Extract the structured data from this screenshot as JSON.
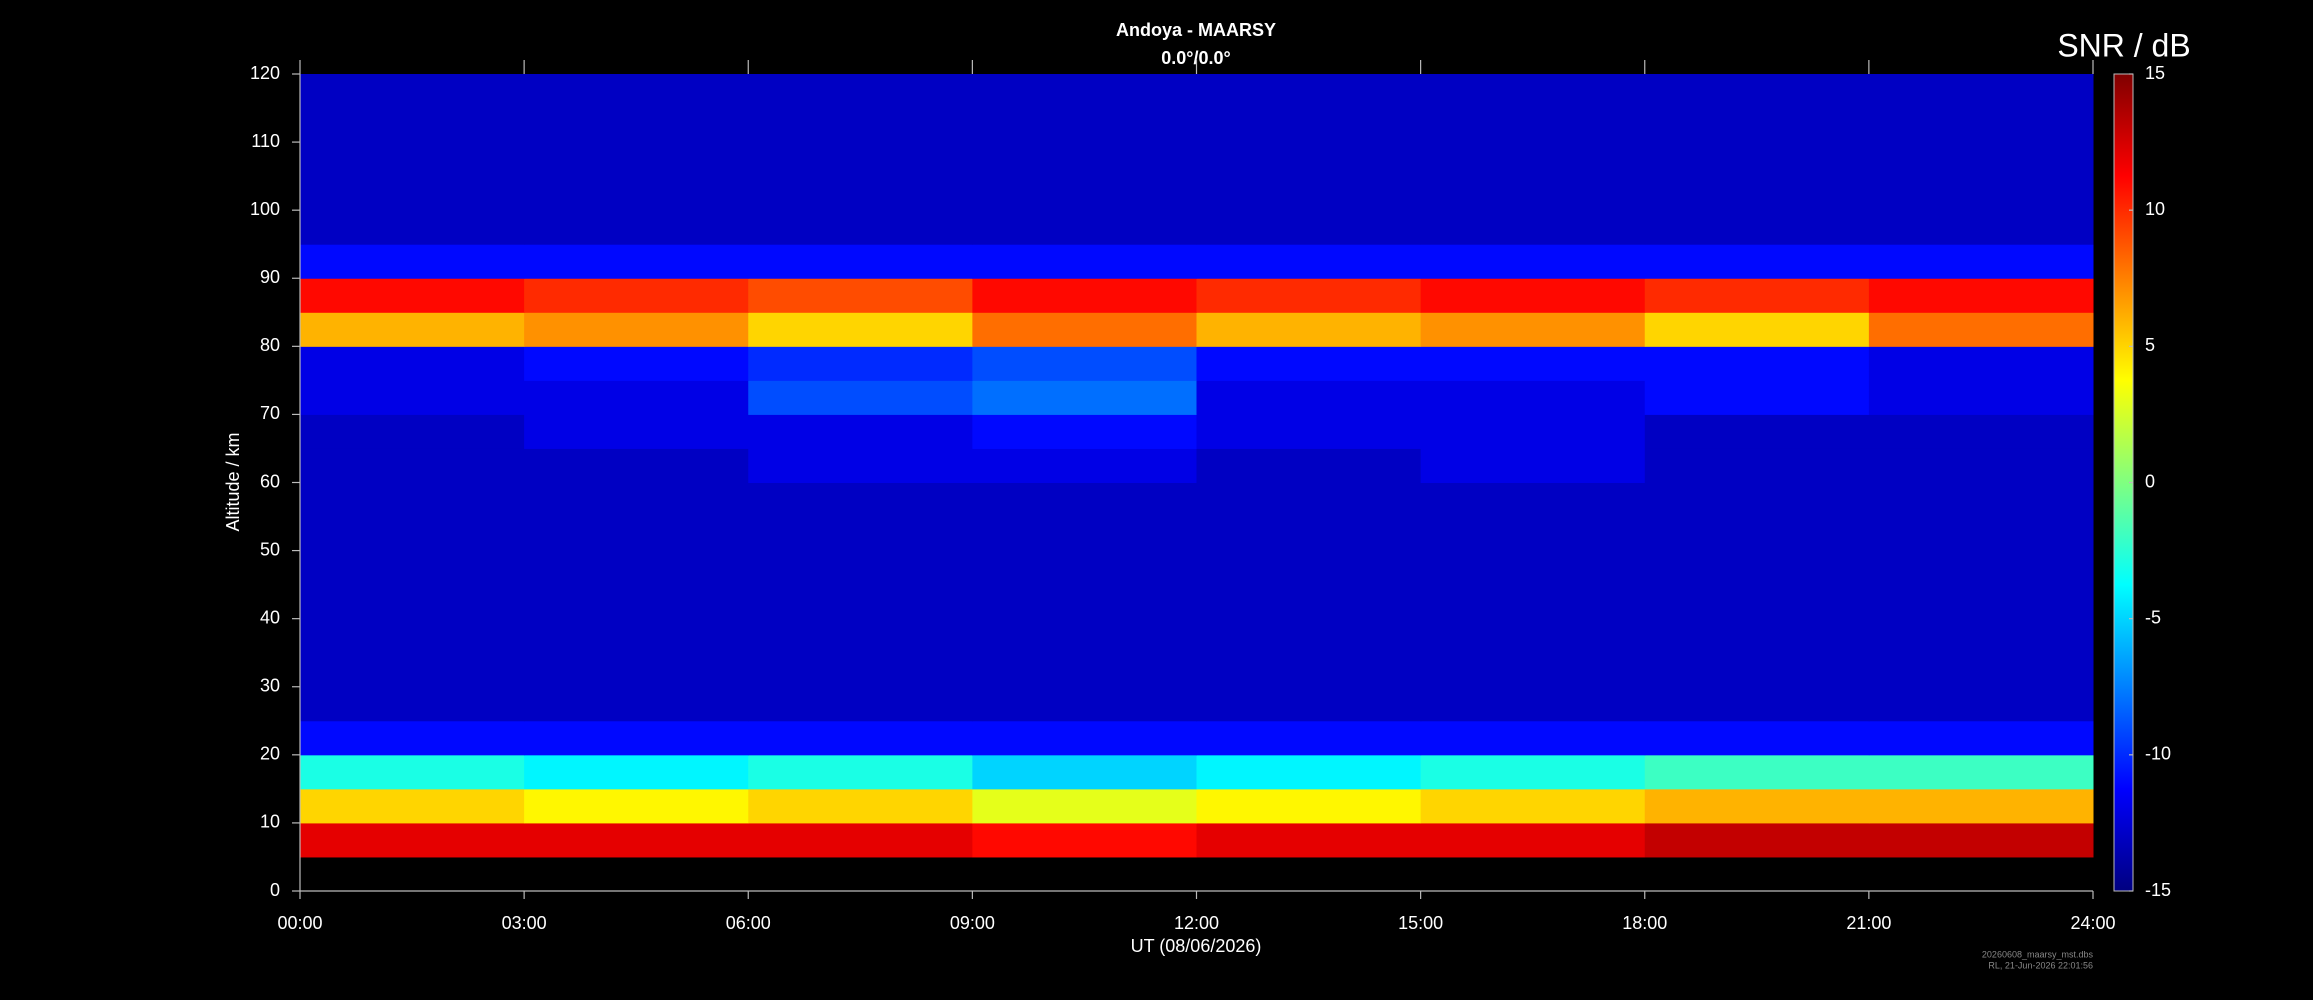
{
  "chart_data": {
    "type": "heatmap",
    "title": "Andoya - MAARSY",
    "subtitle": "0.0°/0.0°",
    "x_label": "UT (08/06/2026)",
    "y_label": "Altitude / km",
    "colorbar_label": "SNR / dB",
    "colorscale": "jet",
    "footnotes": [
      "20260608_maarsy_mst.dbs",
      "RL, 21-Jun-2026 22:01:56"
    ],
    "xlim": [
      0,
      24
    ],
    "xticks": [
      {
        "value": 0,
        "label": "00:00"
      },
      {
        "value": 3,
        "label": "03:00"
      },
      {
        "value": 6,
        "label": "06:00"
      },
      {
        "value": 9,
        "label": "09:00"
      },
      {
        "value": 12,
        "label": "12:00"
      },
      {
        "value": 15,
        "label": "15:00"
      },
      {
        "value": 18,
        "label": "18:00"
      },
      {
        "value": 21,
        "label": "21:00"
      },
      {
        "value": 24,
        "label": "24:00"
      }
    ],
    "ylim": [
      0,
      120
    ],
    "yticks": [
      0,
      10,
      20,
      30,
      40,
      50,
      60,
      70,
      80,
      90,
      100,
      110,
      120
    ],
    "zlim": [
      -15,
      15
    ],
    "zticks": [
      -15,
      -10,
      -5,
      0,
      5,
      10,
      15
    ],
    "x_bins": [
      0,
      3,
      6,
      9,
      12,
      15,
      18,
      21,
      24
    ],
    "y_bins": [
      5,
      10,
      15,
      20,
      25,
      30,
      35,
      40,
      45,
      50,
      55,
      60,
      65,
      70,
      75,
      80,
      85,
      90,
      95,
      100,
      105,
      110,
      115,
      120
    ],
    "z": [
      [
        12,
        12,
        12,
        11,
        12,
        12,
        13,
        13
      ],
      [
        5,
        4,
        5,
        3,
        4,
        5,
        6,
        6
      ],
      [
        -3,
        -4,
        -3,
        -5,
        -4,
        -3,
        -2,
        -2
      ],
      [
        -11,
        -11,
        -11,
        -11,
        -11,
        -11,
        -11,
        -11
      ],
      [
        -13,
        -13,
        -13,
        -13,
        -13,
        -13,
        -13,
        -13
      ],
      [
        -13,
        -13,
        -13,
        -13,
        -13,
        -13,
        -13,
        -13
      ],
      [
        -13,
        -13,
        -13,
        -13,
        -13,
        -13,
        -13,
        -13
      ],
      [
        -13,
        -13,
        -13,
        -13,
        -13,
        -13,
        -13,
        -13
      ],
      [
        -13,
        -13,
        -13,
        -13,
        -13,
        -13,
        -13,
        -13
      ],
      [
        -13,
        -13,
        -13,
        -13,
        -13,
        -13,
        -13,
        -13
      ],
      [
        -13,
        -13,
        -13,
        -13,
        -13,
        -13,
        -13,
        -13
      ],
      [
        -13,
        -13,
        -12,
        -12,
        -13,
        -12,
        -13,
        -13
      ],
      [
        -13,
        -12,
        -12,
        -11,
        -12,
        -12,
        -13,
        -13
      ],
      [
        -12,
        -12,
        -9,
        -8,
        -12,
        -12,
        -11,
        -12
      ],
      [
        -12,
        -11,
        -10,
        -9,
        -11,
        -11,
        -11,
        -12
      ],
      [
        6,
        7,
        5,
        8,
        6,
        7,
        5,
        8
      ],
      [
        11,
        10,
        9,
        11,
        10,
        11,
        10,
        11
      ],
      [
        -11,
        -11,
        -11,
        -11,
        -11,
        -11,
        -11,
        -11
      ],
      [
        -13,
        -13,
        -13,
        -13,
        -13,
        -13,
        -13,
        -13
      ],
      [
        -13,
        -13,
        -13,
        -13,
        -13,
        -13,
        -13,
        -13
      ],
      [
        -13,
        -13,
        -13,
        -13,
        -13,
        -13,
        -13,
        -13
      ],
      [
        -13,
        -13,
        -13,
        -13,
        -13,
        -13,
        -13,
        -13
      ],
      [
        -13,
        -13,
        -13,
        -13,
        -13,
        -13,
        -13,
        -13
      ]
    ]
  }
}
